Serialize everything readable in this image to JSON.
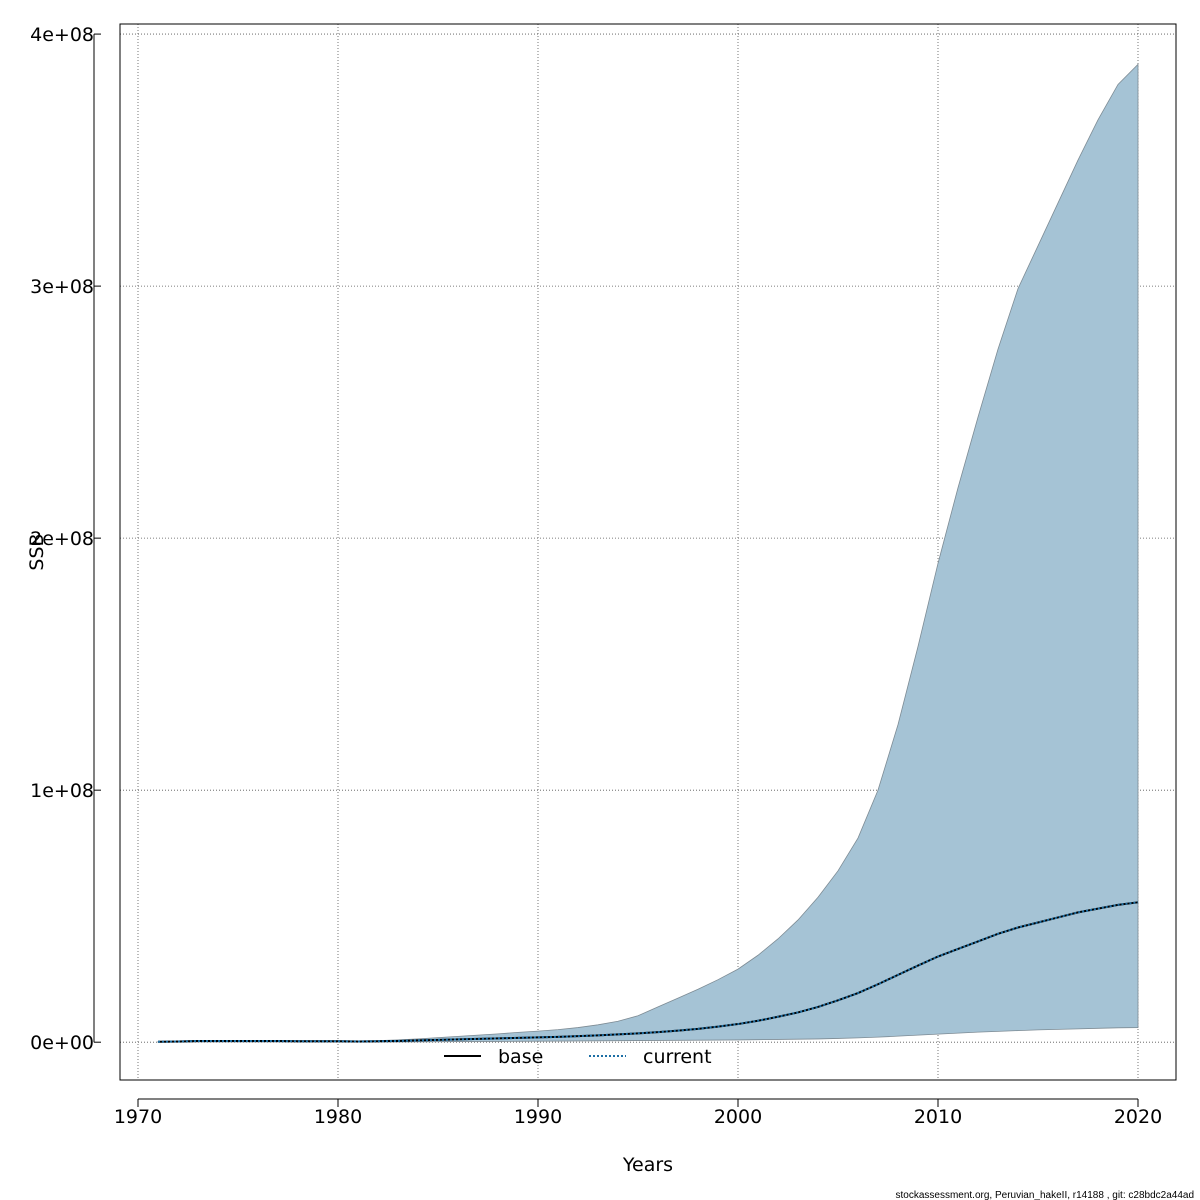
{
  "chart_data": {
    "type": "line",
    "xlabel": "Years",
    "ylabel": "SSB",
    "xlim": [
      1970,
      2020
    ],
    "ylim": [
      -15000000,
      404000000
    ],
    "x_ticks": [
      1970,
      1980,
      1990,
      2000,
      2010,
      2020
    ],
    "y_ticks": [
      0,
      100000000,
      200000000,
      300000000,
      400000000
    ],
    "y_tick_labels": [
      "0e+00",
      "1e+08",
      "2e+08",
      "3e+08",
      "4e+08"
    ],
    "grid": true,
    "legend_position": "bottom-center",
    "band_color": "#a5c3d5",
    "x": [
      1971,
      1972,
      1973,
      1974,
      1975,
      1976,
      1977,
      1978,
      1979,
      1980,
      1981,
      1982,
      1983,
      1984,
      1985,
      1986,
      1987,
      1988,
      1989,
      1990,
      1991,
      1992,
      1993,
      1994,
      1995,
      1996,
      1997,
      1998,
      1999,
      2000,
      2001,
      2002,
      2003,
      2004,
      2005,
      2006,
      2007,
      2008,
      2009,
      2010,
      2011,
      2012,
      2013,
      2014,
      2015,
      2016,
      2017,
      2018,
      2019,
      2020
    ],
    "band_upper": [
      300000,
      400000,
      700000,
      700000,
      700000,
      700000,
      650000,
      600000,
      600000,
      600000,
      500000,
      600000,
      900000,
      1300000,
      1800000,
      2300000,
      2800000,
      3300000,
      3900000,
      4400000,
      5000000,
      5800000,
      6900000,
      8300000,
      10500000,
      14000000,
      17500000,
      21000000,
      24800000,
      29000000,
      34500000,
      41000000,
      48500000,
      57500000,
      68000000,
      81000000,
      100000000,
      126000000,
      157000000,
      190000000,
      220000000,
      248000000,
      275000000,
      299000000,
      316000000,
      333000000,
      350000000,
      366000000,
      380000000,
      388000000
    ],
    "band_lower": [
      0,
      0,
      100000,
      100000,
      100000,
      100000,
      100000,
      100000,
      100000,
      100000,
      50000,
      100000,
      100000,
      150000,
      200000,
      250000,
      300000,
      300000,
      350000,
      400000,
      450000,
      500000,
      550000,
      600000,
      650000,
      700000,
      750000,
      800000,
      850000,
      900000,
      1000000,
      1100000,
      1200000,
      1300000,
      1500000,
      1700000,
      2000000,
      2400000,
      2800000,
      3200000,
      3600000,
      4000000,
      4300000,
      4600000,
      4900000,
      5100000,
      5300000,
      5500000,
      5700000,
      5800000
    ],
    "series": [
      {
        "name": "base",
        "color": "#000000",
        "dash": "solid",
        "values": [
          200000,
          300000,
          500000,
          500000,
          500000,
          500000,
          450000,
          400000,
          400000,
          400000,
          300000,
          400000,
          500000,
          700000,
          900000,
          1100000,
          1300000,
          1500000,
          1700000,
          1900000,
          2100000,
          2400000,
          2700000,
          3100000,
          3500000,
          4000000,
          4600000,
          5300000,
          6200000,
          7200000,
          8500000,
          10100000,
          11800000,
          14000000,
          16600000,
          19500000,
          23000000,
          26700000,
          30400000,
          34000000,
          37000000,
          40000000,
          43000000,
          45500000,
          47500000,
          49500000,
          51500000,
          53000000,
          54500000,
          55500000
        ]
      },
      {
        "name": "current",
        "color": "#1d6fa5",
        "dash": "dotted",
        "values": [
          200000,
          300000,
          500000,
          500000,
          500000,
          500000,
          450000,
          400000,
          400000,
          400000,
          300000,
          400000,
          500000,
          700000,
          900000,
          1100000,
          1300000,
          1500000,
          1700000,
          1900000,
          2100000,
          2400000,
          2700000,
          3100000,
          3500000,
          4000000,
          4600000,
          5300000,
          6200000,
          7200000,
          8500000,
          10100000,
          11800000,
          14000000,
          16600000,
          19500000,
          23000000,
          26700000,
          30400000,
          34000000,
          37000000,
          40000000,
          43000000,
          45500000,
          47500000,
          49500000,
          51500000,
          53000000,
          54500000,
          55500000
        ]
      }
    ]
  },
  "footer_text": "stockassessment.org, Peruvian_hakeII, r14188 , git: c28bdc2a44ad"
}
